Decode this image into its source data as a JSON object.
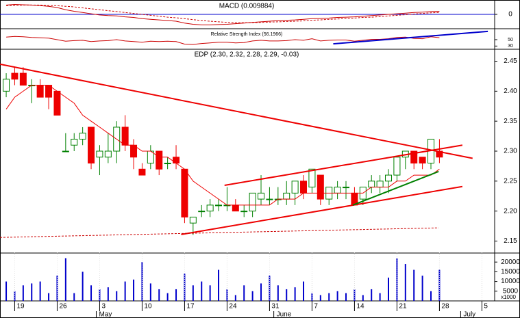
{
  "chart_data": [
    {
      "type": "line",
      "title": "MACD (0.009884)",
      "ylim": [
        -0.042,
        0.042
      ],
      "yticks": [
        0
      ],
      "zero_line_color": "#0000cc",
      "series": [
        {
          "color": "#cc0000",
          "style": "solid",
          "values": [
            0.03,
            0.032,
            0.031,
            0.03,
            0.028,
            0.026,
            0.022,
            0.015,
            0.01,
            0.006,
            0.002,
            -0.002,
            -0.004,
            -0.005,
            -0.008,
            -0.01,
            -0.014,
            -0.016,
            -0.018,
            -0.02,
            -0.022,
            -0.028,
            -0.032,
            -0.034,
            -0.034,
            -0.033,
            -0.032,
            -0.03,
            -0.028,
            -0.026,
            -0.024,
            -0.022,
            -0.02,
            -0.019,
            -0.018,
            -0.016,
            -0.014,
            -0.013,
            -0.012,
            -0.01,
            -0.009,
            -0.008,
            -0.006,
            -0.004,
            -0.002,
            0.0,
            0.002,
            0.004,
            0.006,
            0.007,
            0.009,
            0.009884
          ]
        },
        {
          "color": "#cc0000",
          "style": "dashed",
          "values": [
            0.028,
            0.029,
            0.03,
            0.03,
            0.03,
            0.029,
            0.028,
            0.026,
            0.024,
            0.021,
            0.018,
            0.015,
            0.012,
            0.009,
            0.006,
            0.003,
            0.0,
            -0.003,
            -0.006,
            -0.009,
            -0.011,
            -0.014,
            -0.017,
            -0.02,
            -0.022,
            -0.024,
            -0.026,
            -0.027,
            -0.027,
            -0.027,
            -0.026,
            -0.025,
            -0.024,
            -0.023,
            -0.022,
            -0.021,
            -0.019,
            -0.018,
            -0.016,
            -0.015,
            -0.013,
            -0.012,
            -0.01,
            -0.009,
            -0.007,
            -0.005,
            -0.003,
            -0.001,
            0.001,
            0.003,
            0.005,
            0.006
          ]
        }
      ]
    },
    {
      "type": "line",
      "title": "Relative Strength Index (56.1966)",
      "ylim": [
        20,
        80
      ],
      "yticks": [
        50,
        30
      ],
      "series": [
        {
          "color": "#cc0000",
          "style": "solid",
          "values": [
            58,
            60,
            59,
            57,
            56,
            55,
            50,
            45,
            47,
            48,
            44,
            46,
            47,
            50,
            46,
            44,
            42,
            45,
            44,
            45,
            44,
            36,
            35,
            38,
            40,
            42,
            42,
            40,
            41,
            46,
            48,
            46,
            46,
            47,
            50,
            48,
            53,
            46,
            48,
            49,
            49,
            45,
            48,
            51,
            51,
            53,
            57,
            58,
            54,
            53,
            59,
            56.1966
          ]
        }
      ],
      "lines": [
        {
          "color": "#0000cc",
          "style": "solid",
          "points": [
            [
              38.5,
              37
            ],
            [
              56.7,
              76
            ]
          ]
        }
      ]
    },
    {
      "type": "candlestick",
      "title": "EDP (2.30, 2.32, 2.28, 2.29, -0.03)",
      "ylim": [
        2.13,
        2.47
      ],
      "yticks": [
        {
          "value": 2.45,
          "label": "2.45"
        },
        {
          "value": 2.4,
          "label": "2.40"
        },
        {
          "value": 2.35,
          "label": "2.35"
        },
        {
          "value": 2.3,
          "label": "2.30"
        },
        {
          "value": 2.25,
          "label": "2.25"
        },
        {
          "value": 2.2,
          "label": "2.20"
        },
        {
          "value": 2.15,
          "label": "2.15"
        }
      ],
      "up_color": "#008000",
      "down_color": "#ee0000",
      "open": [
        2.4,
        2.43,
        2.43,
        2.41,
        2.41,
        2.41,
        2.4,
        2.3,
        2.31,
        2.32,
        2.34,
        2.29,
        2.29,
        2.3,
        2.34,
        2.31,
        2.27,
        2.28,
        2.3,
        2.28,
        2.29,
        2.27,
        2.18,
        2.2,
        2.2,
        2.21,
        2.21,
        2.21,
        2.2,
        2.2,
        2.22,
        2.22,
        2.22,
        2.22,
        2.23,
        2.25,
        2.24,
        2.26,
        2.22,
        2.23,
        2.24,
        2.23,
        2.22,
        2.24,
        2.24,
        2.25,
        2.26,
        2.29,
        2.3,
        2.29,
        2.28,
        2.3
      ],
      "high": [
        2.43,
        2.44,
        2.44,
        2.42,
        2.42,
        2.41,
        2.4,
        2.33,
        2.33,
        2.34,
        2.34,
        2.31,
        2.33,
        2.35,
        2.36,
        2.32,
        2.28,
        2.31,
        2.3,
        2.29,
        2.31,
        2.27,
        2.19,
        2.21,
        2.22,
        2.22,
        2.24,
        2.22,
        2.21,
        2.23,
        2.26,
        2.24,
        2.24,
        2.25,
        2.25,
        2.26,
        2.27,
        2.26,
        2.24,
        2.25,
        2.25,
        2.24,
        2.24,
        2.26,
        2.26,
        2.27,
        2.29,
        2.3,
        2.3,
        2.29,
        2.32,
        2.32
      ],
      "low": [
        2.39,
        2.41,
        2.41,
        2.38,
        2.39,
        2.37,
        2.36,
        2.3,
        2.3,
        2.31,
        2.27,
        2.26,
        2.28,
        2.28,
        2.3,
        2.27,
        2.26,
        2.27,
        2.26,
        2.27,
        2.27,
        2.18,
        2.16,
        2.19,
        2.19,
        2.2,
        2.2,
        2.2,
        2.19,
        2.19,
        2.21,
        2.21,
        2.21,
        2.21,
        2.21,
        2.22,
        2.23,
        2.21,
        2.21,
        2.22,
        2.22,
        2.21,
        2.21,
        2.23,
        2.23,
        2.23,
        2.25,
        2.27,
        2.27,
        2.27,
        2.27,
        2.28
      ],
      "close": [
        2.42,
        2.42,
        2.41,
        2.41,
        2.39,
        2.39,
        2.36,
        2.3,
        2.32,
        2.33,
        2.28,
        2.3,
        2.3,
        2.34,
        2.31,
        2.29,
        2.26,
        2.3,
        2.27,
        2.28,
        2.28,
        2.19,
        2.19,
        2.2,
        2.21,
        2.21,
        2.21,
        2.2,
        2.2,
        2.23,
        2.23,
        2.22,
        2.22,
        2.23,
        2.25,
        2.23,
        2.27,
        2.22,
        2.24,
        2.24,
        2.24,
        2.21,
        2.24,
        2.25,
        2.25,
        2.26,
        2.29,
        2.3,
        2.28,
        2.28,
        2.32,
        2.29
      ],
      "series": [
        {
          "color": "#ee0000",
          "style": "solid",
          "values": [
            2.37,
            2.39,
            2.4,
            2.41,
            2.41,
            2.41,
            2.4,
            2.39,
            2.38,
            2.36,
            2.35,
            2.34,
            2.33,
            2.32,
            2.31,
            2.31,
            2.3,
            2.3,
            2.29,
            2.29,
            2.28,
            2.27,
            2.25,
            2.24,
            2.23,
            2.22,
            2.21,
            2.21,
            2.21,
            2.21,
            2.21,
            2.21,
            2.22,
            2.22,
            2.22,
            2.23,
            2.23,
            2.23,
            2.23,
            2.23,
            2.23,
            2.23,
            2.23,
            2.24,
            2.24,
            2.24,
            2.25,
            2.25,
            2.26,
            2.26,
            2.26,
            2.27
          ]
        }
      ],
      "lines": [
        {
          "color": "#ee0000",
          "style": "solid",
          "points": [
            [
              -0.73,
              2.445
            ],
            [
              54.9,
              2.288
            ]
          ]
        },
        {
          "color": "#ee0000",
          "style": "solid",
          "points": [
            [
              25.7,
              2.243
            ],
            [
              53.7,
              2.31
            ]
          ]
        },
        {
          "color": "#ee0000",
          "style": "solid",
          "points": [
            [
              20.6,
              2.161
            ],
            [
              53.7,
              2.241
            ]
          ]
        },
        {
          "color": "#008000",
          "style": "solid",
          "points": [
            [
              40.8,
              2.21
            ],
            [
              50.9,
              2.266
            ]
          ]
        },
        {
          "color": "#cc0000",
          "style": "dashed",
          "points": [
            [
              -0.73,
              2.156
            ],
            [
              50.9,
              2.172
            ]
          ]
        }
      ]
    },
    {
      "type": "bar",
      "ylim": [
        0,
        25000
      ],
      "unit_label": "x1000",
      "color": "#0000cc",
      "yticks": [
        20000,
        15000,
        10000,
        5000
      ],
      "values": [
        10000,
        5000,
        8000,
        9000,
        10000,
        4000,
        13000,
        22000,
        4000,
        15000,
        8000,
        6000,
        7000,
        5000,
        10000,
        11000,
        20000,
        9000,
        6000,
        4000,
        6000,
        14000,
        8000,
        10000,
        8000,
        16000,
        6000,
        3000,
        8000,
        5000,
        9000,
        13000,
        8000,
        6000,
        7000,
        10000,
        4000,
        3000,
        4000,
        5000,
        4000,
        6000,
        3000,
        6000,
        4000,
        12000,
        22000,
        19000,
        16000,
        13000,
        5000,
        16000
      ],
      "xlim": [
        -0.73,
        57.5
      ],
      "xticks": [
        {
          "value": 1,
          "label": "19"
        },
        {
          "value": 6,
          "label": "26"
        },
        {
          "value": 11,
          "label": "3"
        },
        {
          "value": 16,
          "label": "10"
        },
        {
          "value": 21,
          "label": "17"
        },
        {
          "value": 26,
          "label": "24"
        },
        {
          "value": 31,
          "label": "31"
        },
        {
          "value": 36,
          "label": "7"
        },
        {
          "value": 41,
          "label": "14"
        },
        {
          "value": 46,
          "label": "21"
        },
        {
          "value": 51,
          "label": "28"
        },
        {
          "value": 56,
          "label": "5"
        }
      ],
      "months": [
        {
          "value": 10.6,
          "label": "May"
        },
        {
          "value": 31.5,
          "label": "June"
        },
        {
          "value": 53.5,
          "label": "July"
        }
      ]
    }
  ]
}
